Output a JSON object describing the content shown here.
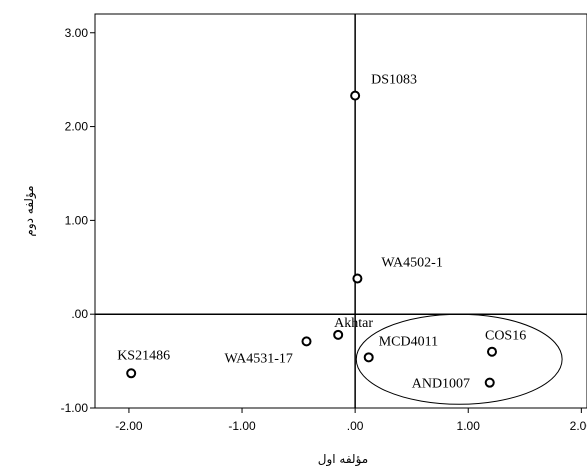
{
  "chart_data": {
    "type": "scatter",
    "xlabel": "مؤلفه اول",
    "ylabel": "مؤلفه دوم",
    "xlim": [
      -2.3,
      2.05
    ],
    "ylim": [
      -1.0,
      3.2
    ],
    "xticks": [
      -2.0,
      -1.0,
      0.0,
      1.0,
      2.0
    ],
    "xtick_labels": [
      "-2.00",
      "-1.00",
      ".00",
      "1.00",
      "2.00"
    ],
    "yticks": [
      -1.0,
      0.0,
      1.0,
      2.0,
      3.0
    ],
    "ytick_labels": [
      "-1.00",
      ".00",
      "1.00",
      "2.00",
      "3.00"
    ],
    "reference_lines": {
      "x": 0,
      "y": 0
    },
    "grid": false,
    "marker": "open-circle",
    "points": [
      {
        "label": "DS1083",
        "x": 0.0,
        "y": 2.33
      },
      {
        "label": "WA4502-1",
        "x": 0.02,
        "y": 0.38
      },
      {
        "label": "Akhtar",
        "x": -0.15,
        "y": -0.22
      },
      {
        "label": "WA4531-17",
        "x": -0.43,
        "y": -0.29
      },
      {
        "label": "MCD4011",
        "x": 0.12,
        "y": -0.46
      },
      {
        "label": "COS16",
        "x": 1.21,
        "y": -0.4
      },
      {
        "label": "AND1007",
        "x": 1.19,
        "y": -0.73
      },
      {
        "label": "KS21486",
        "x": -1.98,
        "y": -0.63
      }
    ],
    "highlight_ellipse": {
      "center_x": 0.92,
      "center_y": -0.48,
      "radius_x": 0.91,
      "radius_y": 0.48
    }
  }
}
